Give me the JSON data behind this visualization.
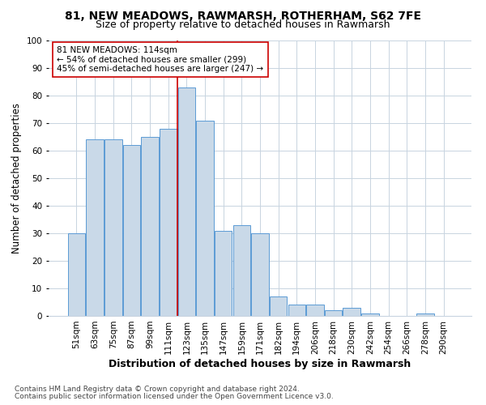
{
  "title": "81, NEW MEADOWS, RAWMARSH, ROTHERHAM, S62 7FE",
  "subtitle": "Size of property relative to detached houses in Rawmarsh",
  "xlabel": "Distribution of detached houses by size in Rawmarsh",
  "ylabel": "Number of detached properties",
  "categories": [
    "51sqm",
    "63sqm",
    "75sqm",
    "87sqm",
    "99sqm",
    "111sqm",
    "123sqm",
    "135sqm",
    "147sqm",
    "159sqm",
    "171sqm",
    "182sqm",
    "194sqm",
    "206sqm",
    "218sqm",
    "230sqm",
    "242sqm",
    "254sqm",
    "266sqm",
    "278sqm",
    "290sqm"
  ],
  "values": [
    30,
    64,
    64,
    62,
    65,
    68,
    83,
    71,
    31,
    33,
    30,
    7,
    4,
    4,
    2,
    3,
    1,
    0,
    0,
    1,
    0
  ],
  "bar_color": "#c9d9e8",
  "bar_edge_color": "#5b9bd5",
  "red_line_index": 5,
  "red_line_color": "#cc0000",
  "annotation_text": "81 NEW MEADOWS: 114sqm\n← 54% of detached houses are smaller (299)\n45% of semi-detached houses are larger (247) →",
  "annotation_box_color": "#ffffff",
  "annotation_box_edge": "#cc0000",
  "ylim": [
    0,
    100
  ],
  "yticks": [
    0,
    10,
    20,
    30,
    40,
    50,
    60,
    70,
    80,
    90,
    100
  ],
  "footer1": "Contains HM Land Registry data © Crown copyright and database right 2024.",
  "footer2": "Contains public sector information licensed under the Open Government Licence v3.0.",
  "bg_color": "#ffffff",
  "grid_color": "#c8d4e0",
  "title_fontsize": 10,
  "subtitle_fontsize": 9,
  "axis_label_fontsize": 8.5,
  "tick_fontsize": 7.5,
  "footer_fontsize": 6.5,
  "annotation_fontsize": 7.5
}
